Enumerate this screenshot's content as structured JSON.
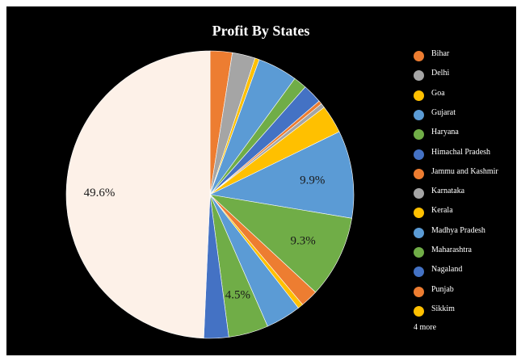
{
  "chart_data": {
    "type": "pie",
    "title": "Profit By States",
    "slices": [
      {
        "label": "Bihar",
        "value": 2.5,
        "color": "#ED7D31"
      },
      {
        "label": "Delhi",
        "value": 2.6,
        "color": "#A5A5A5"
      },
      {
        "label": "Goa",
        "value": 0.5,
        "color": "#FFC000"
      },
      {
        "label": "Gujarat",
        "value": 4.5,
        "color": "#5B9BD5"
      },
      {
        "label": "Haryana",
        "value": 1.5,
        "color": "#70AD47"
      },
      {
        "label": "Himachal Pradesh",
        "value": 2.2,
        "color": "#4472C4"
      },
      {
        "label": "Jammu and Kashmir",
        "value": 0.4,
        "color": "#ED7D31"
      },
      {
        "label": "Karnataka",
        "value": 0.5,
        "color": "#A5A5A5"
      },
      {
        "label": "Kerala",
        "value": 3.2,
        "color": "#FFC000"
      },
      {
        "label": "Madhya Pradesh",
        "value": 9.9,
        "color": "#5B9BD5",
        "data_label": "9.9%"
      },
      {
        "label": "Maharashtra",
        "value": 9.3,
        "color": "#70AD47",
        "data_label": "9.3%"
      },
      {
        "label": "Nagaland",
        "value": 0.0,
        "color": "#4472C4"
      },
      {
        "label": "Punjab",
        "value": 2.0,
        "color": "#ED7D31"
      },
      {
        "label": "Sikkim",
        "value": 0.6,
        "color": "#FFC000"
      },
      {
        "label": "",
        "value": 4.0,
        "color": "#5B9BD5"
      },
      {
        "label": "",
        "value": 4.5,
        "color": "#70AD47",
        "data_label": "4.5%"
      },
      {
        "label": "",
        "value": 2.8,
        "color": "#4472C4"
      },
      {
        "label": "",
        "value": 49.6,
        "color": "#FDF1E8",
        "data_label": "49.6%"
      }
    ],
    "legend_position": "right",
    "legend_more": "4 more"
  }
}
